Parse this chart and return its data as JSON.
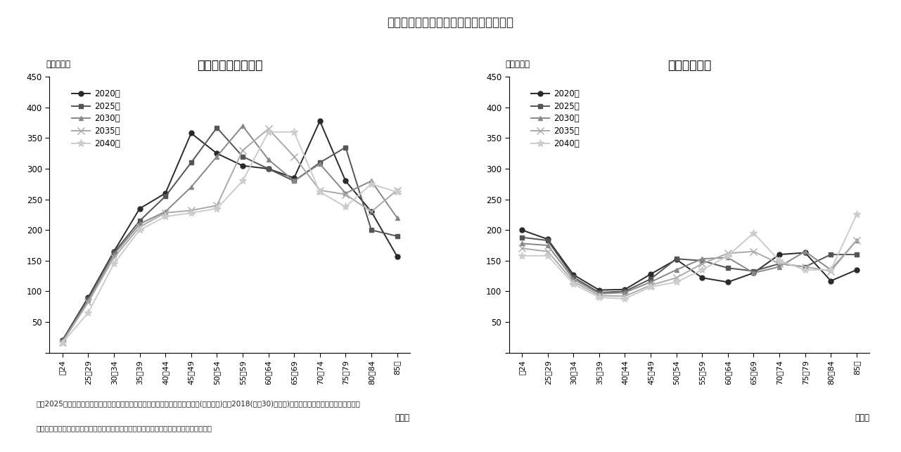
{
  "title": "図表４：年齢毎の将来推計世帯数の推移",
  "subtitle_left": "＜二人以上の世帯＞",
  "subtitle_right": "＜単身世帯＞",
  "x_labels": [
    "～24",
    "25～29",
    "30～34",
    "35～39",
    "40～44",
    "45～49",
    "50～54",
    "55～59",
    "60～64",
    "65～69",
    "70～74",
    "75～79",
    "80～84",
    "85～"
  ],
  "xlabel": "（歳）",
  "ylabel": "（万世帯）",
  "ylim": [
    0,
    450
  ],
  "yticks": [
    0,
    50,
    100,
    150,
    200,
    250,
    300,
    350,
    400,
    450
  ],
  "legend_labels": [
    "2020年",
    "2025年",
    "2030年",
    "2035年",
    "2040年"
  ],
  "colors": [
    "#2a2a2a",
    "#555555",
    "#888888",
    "#aaaaaa",
    "#cccccc"
  ],
  "markers": [
    "o",
    "s",
    "^",
    "x",
    "*"
  ],
  "markersizes": [
    5,
    5,
    5,
    7,
    8
  ],
  "left_data": {
    "2020": [
      20,
      90,
      165,
      235,
      260,
      358,
      325,
      305,
      300,
      285,
      378,
      280,
      230,
      157
    ],
    "2025": [
      20,
      88,
      163,
      215,
      255,
      310,
      367,
      320,
      300,
      280,
      310,
      335,
      200,
      190
    ],
    "2030": [
      18,
      85,
      160,
      210,
      230,
      270,
      320,
      370,
      315,
      280,
      308,
      260,
      280,
      220
    ],
    "2035": [
      17,
      82,
      155,
      205,
      228,
      232,
      240,
      330,
      365,
      320,
      265,
      258,
      230,
      265
    ],
    "2040": [
      16,
      65,
      145,
      200,
      222,
      228,
      235,
      280,
      360,
      360,
      262,
      238,
      275,
      262
    ]
  },
  "right_data": {
    "2020": [
      200,
      185,
      127,
      102,
      103,
      128,
      152,
      122,
      115,
      130,
      160,
      163,
      117,
      135
    ],
    "2025": [
      188,
      183,
      123,
      98,
      100,
      120,
      153,
      150,
      138,
      133,
      145,
      140,
      160,
      160
    ],
    "2030": [
      178,
      175,
      120,
      96,
      98,
      115,
      135,
      153,
      155,
      130,
      140,
      165,
      135,
      183
    ],
    "2035": [
      170,
      165,
      116,
      93,
      92,
      110,
      122,
      145,
      162,
      165,
      145,
      140,
      133,
      183
    ],
    "2040": [
      158,
      158,
      112,
      90,
      88,
      107,
      115,
      135,
      158,
      195,
      150,
      135,
      135,
      225
    ]
  },
  "note": "注：2025年以降は、令和２年国勢調査の世帯数に、「日本の世帯数の将来推計(全国推計)」（2018(平成30)年推計)の世帯数変化率を乗じることで算出",
  "source": "出所：総務省、国立社会保障・人口問題研究所のデータをもとにニッセイ基礎研究所作成",
  "background_color": "#ffffff"
}
